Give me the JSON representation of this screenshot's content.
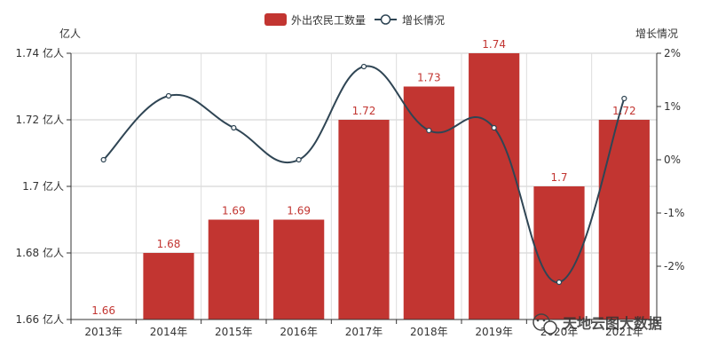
{
  "chart_data": {
    "type": "bar",
    "categories": [
      "2013年",
      "2014年",
      "2015年",
      "2016年",
      "2017年",
      "2018年",
      "2019年",
      "2020年",
      "2021年"
    ],
    "series": [
      {
        "name": "外出农民工数量",
        "type": "bar",
        "axis": "left",
        "color": "#c23531",
        "values": [
          1.66,
          1.68,
          1.69,
          1.69,
          1.72,
          1.73,
          1.74,
          1.7,
          1.72
        ],
        "labels": [
          "1.66",
          "1.68",
          "1.69",
          "1.69",
          "1.72",
          "1.73",
          "1.74",
          "1.7",
          "1.72"
        ]
      },
      {
        "name": "增长情况",
        "type": "line",
        "axis": "right",
        "color": "#2f4554",
        "smooth": true,
        "values": [
          0.0,
          1.2,
          0.6,
          0.0,
          1.75,
          0.55,
          0.6,
          -2.3,
          1.15
        ]
      }
    ],
    "left_axis": {
      "unit_label": "亿人",
      "ylim": [
        1.66,
        1.74
      ],
      "ticks": [
        "1.66 亿人",
        "1.68 亿人",
        "1.7 亿人",
        "1.72 亿人",
        "1.74 亿人"
      ],
      "tick_values": [
        1.66,
        1.68,
        1.7,
        1.72,
        1.74
      ]
    },
    "right_axis": {
      "unit_label": "增长情况",
      "ylim": [
        -3,
        2
      ],
      "ticks": [
        "-2%",
        "-1%",
        "0%",
        "1%",
        "2%"
      ],
      "tick_values": [
        -2,
        -1,
        0,
        1,
        2
      ]
    },
    "legend": {
      "placement": "top-center",
      "items": [
        "外出农民工数量",
        "增长情况"
      ]
    },
    "grid": true
  },
  "watermark": {
    "icon": "wechat-icon",
    "text": "天地云图大数据"
  }
}
